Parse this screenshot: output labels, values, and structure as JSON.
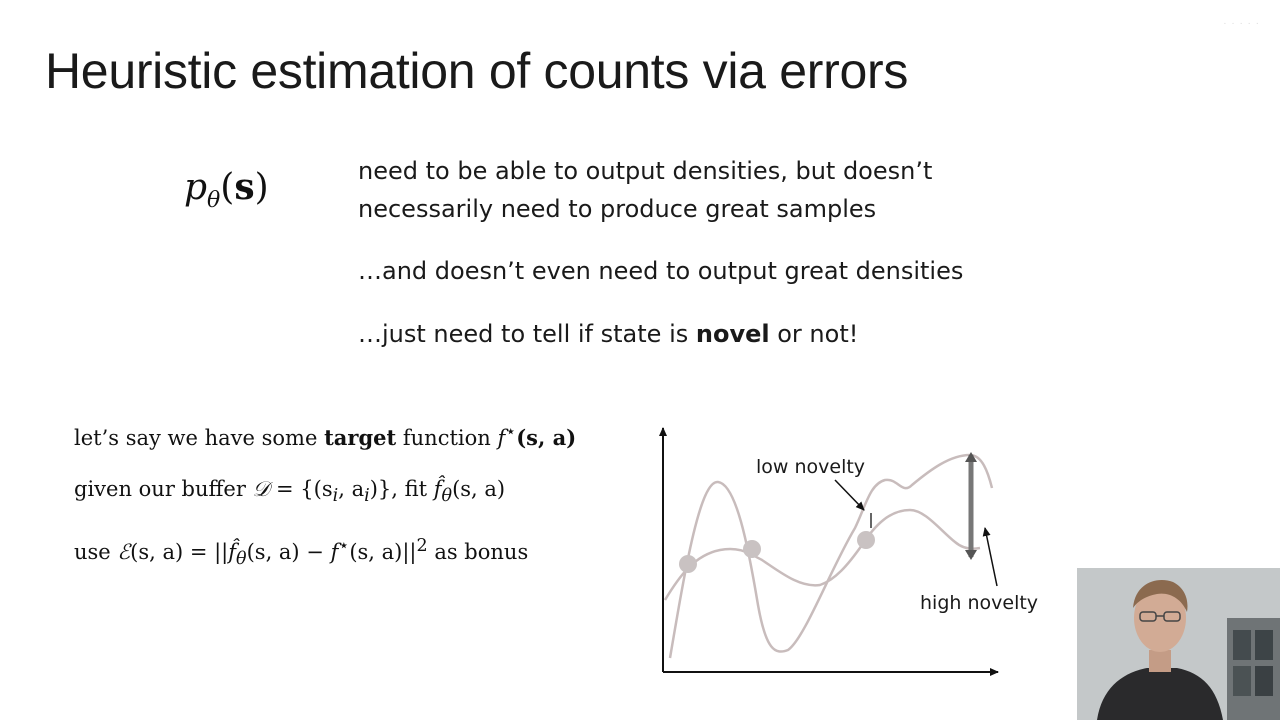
{
  "title": "Heuristic estimation of counts via errors",
  "formula": {
    "symbol": "p",
    "subscript": "θ",
    "argument": "s"
  },
  "bullets": {
    "b1_line1": "need to be able to output densities, but doesn’t",
    "b1_line2": "necessarily need to produce great samples",
    "b2": "…and doesn’t even need to output great densities",
    "b3_pre": "…just need to tell if state is ",
    "b3_bold": "novel",
    "b3_post": " or not!"
  },
  "math_lines": {
    "line1_a": "let’s say we have some ",
    "line1_b": "target",
    "line1_c": " function ",
    "line1_d": "f",
    "line1_e": "⋆",
    "line1_f": "(s, a)",
    "line2_a": "given our buffer ",
    "line2_b": "𝒟",
    "line2_c": " = {(s",
    "line2_d": "i",
    "line2_e": ", a",
    "line2_f": "i",
    "line2_g": ")}, fit ",
    "line2_h": "f̂",
    "line2_i": "θ",
    "line2_j": "(s, a)",
    "line3_a": "use ",
    "line3_b": "ℰ",
    "line3_c": "(s, a) = ||",
    "line3_d": "f̂",
    "line3_e": "θ",
    "line3_f": "(s, a) − ",
    "line3_g": "f",
    "line3_h": "⋆",
    "line3_i": "(s, a)||",
    "line3_j": "2",
    "line3_k": " as bonus"
  },
  "plot_labels": {
    "low": "low novelty",
    "high": "high novelty"
  },
  "colors": {
    "curve": "#c8bcbc",
    "axis": "#111111",
    "point": "#c9c2c2",
    "arrow": "#777777"
  }
}
